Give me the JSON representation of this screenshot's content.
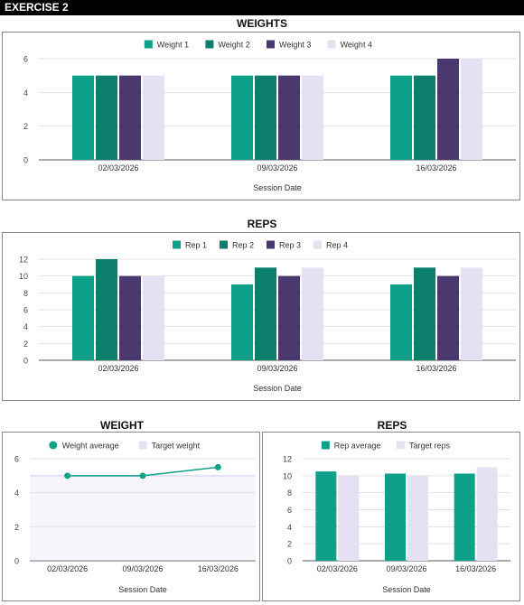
{
  "header": {
    "title": "EXERCISE 2"
  },
  "colors": {
    "c1": "#0fa08a",
    "c2": "#0b7f6c",
    "c3": "#4a386e",
    "c4": "#e5e1f3"
  },
  "chart_data": [
    {
      "id": "weights",
      "type": "bar",
      "title": "WEIGHTS",
      "xlabel": "Session Date",
      "ylabel": "",
      "categories": [
        "02/03/2026",
        "09/03/2026",
        "16/03/2026"
      ],
      "series": [
        {
          "name": "Weight 1",
          "values": [
            5,
            5,
            5
          ],
          "color": "#0fa08a"
        },
        {
          "name": "Weight 2",
          "values": [
            5,
            5,
            5
          ],
          "color": "#0b7f6c"
        },
        {
          "name": "Weight 3",
          "values": [
            5,
            5,
            6
          ],
          "color": "#4a386e"
        },
        {
          "name": "Weight 4",
          "values": [
            5,
            5,
            6
          ],
          "color": "#e5e1f3"
        }
      ],
      "ylim": [
        0,
        6
      ],
      "yticks": [
        0,
        2,
        4,
        6
      ],
      "legend": "top-center",
      "grid": true
    },
    {
      "id": "reps",
      "type": "bar",
      "title": "REPS",
      "xlabel": "Session Date",
      "ylabel": "",
      "categories": [
        "02/03/2026",
        "09/03/2026",
        "16/03/2026"
      ],
      "series": [
        {
          "name": "Rep 1",
          "values": [
            10,
            9,
            9
          ],
          "color": "#0fa08a"
        },
        {
          "name": "Rep 2",
          "values": [
            12,
            11,
            11
          ],
          "color": "#0b7f6c"
        },
        {
          "name": "Rep 3",
          "values": [
            10,
            10,
            10
          ],
          "color": "#4a386e"
        },
        {
          "name": "Rep 4",
          "values": [
            10,
            11,
            11
          ],
          "color": "#e5e1f3"
        }
      ],
      "ylim": [
        0,
        12
      ],
      "yticks": [
        0,
        2,
        4,
        6,
        8,
        10,
        12
      ],
      "legend": "top-center",
      "grid": true
    },
    {
      "id": "weight-avg",
      "type": "line",
      "title": "WEIGHT",
      "xlabel": "Session Date",
      "ylabel": "",
      "categories": [
        "02/03/2026",
        "09/03/2026",
        "16/03/2026"
      ],
      "series": [
        {
          "name": "Weight average",
          "values": [
            5,
            5,
            5.5
          ],
          "color": "#0fa08a",
          "kind": "line"
        },
        {
          "name": "Target weight",
          "values": [
            5,
            5,
            5
          ],
          "color": "#e5e1f3",
          "kind": "area"
        }
      ],
      "ylim": [
        0,
        6
      ],
      "yticks": [
        0,
        2,
        4,
        6
      ],
      "legend": "top-center",
      "grid": true
    },
    {
      "id": "reps-avg",
      "type": "bar",
      "title": "REPS",
      "xlabel": "Session Date",
      "ylabel": "",
      "categories": [
        "02/03/2026",
        "09/03/2026",
        "16/03/2026"
      ],
      "series": [
        {
          "name": "Rep average",
          "values": [
            10.5,
            10.25,
            10.25
          ],
          "color": "#0fa08a"
        },
        {
          "name": "Target reps",
          "values": [
            10,
            10,
            11
          ],
          "color": "#e5e1f3"
        }
      ],
      "ylim": [
        0,
        12
      ],
      "yticks": [
        0,
        2,
        4,
        6,
        8,
        10,
        12
      ],
      "legend": "top-center",
      "grid": true
    }
  ]
}
